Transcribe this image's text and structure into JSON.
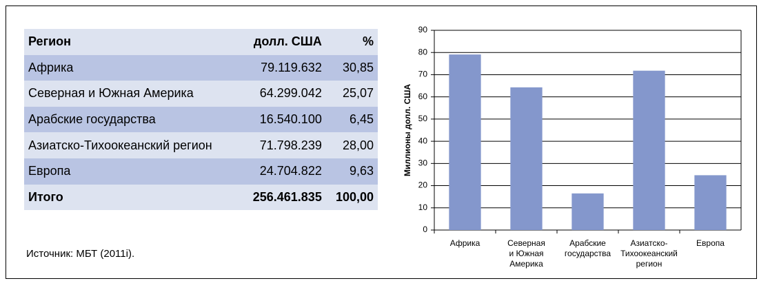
{
  "table": {
    "header": [
      "Регион",
      "долл. США",
      "%"
    ],
    "rows": [
      [
        "Африка",
        "79.119.632",
        "30,85"
      ],
      [
        "Северная и Южная Америка",
        "64.299.042",
        "25,07"
      ],
      [
        "Арабские государства",
        "16.540.100",
        "6,45"
      ],
      [
        "Азиатско-Тихоокеанский регион",
        "71.798.239",
        "28,00"
      ],
      [
        "Европа",
        "24.704.822",
        "9,63"
      ]
    ],
    "total": [
      "Итого",
      "256.461.835",
      "100,00"
    ]
  },
  "source": "Источник: МБТ (2011i).",
  "chart_data": {
    "type": "bar",
    "y_label": "Миллионы долл. США",
    "categories": [
      [
        "Африка"
      ],
      [
        "Северная",
        "и Южная",
        "Америка"
      ],
      [
        "Арабские",
        "государства"
      ],
      [
        "Азиатско-",
        "Тихоокеанский",
        "регион"
      ],
      [
        "Европа"
      ]
    ],
    "values": [
      79.1,
      64.3,
      16.5,
      71.8,
      24.7
    ],
    "color": "#8497cc",
    "ylim": [
      0,
      90
    ],
    "yticks": [
      0,
      10,
      20,
      30,
      40,
      50,
      60,
      70,
      80,
      90
    ],
    "grid": true
  }
}
